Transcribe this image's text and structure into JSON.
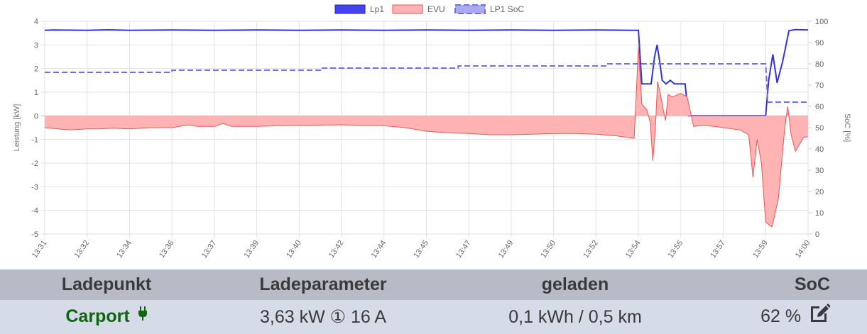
{
  "chart_data": {
    "type": "line",
    "x_labels": [
      "13:31",
      "13:32",
      "13:34",
      "13:36",
      "13:37",
      "13:39",
      "13:40",
      "13:42",
      "13:44",
      "13:45",
      "13:47",
      "13:49",
      "13:50",
      "13:52",
      "13:54",
      "13:55",
      "13:57",
      "13:59",
      "14:00"
    ],
    "y_left": {
      "label": "Leistung [kW]",
      "ticks": [
        4,
        3,
        2,
        1,
        0,
        -1,
        -2,
        -3,
        -4,
        -5
      ],
      "min": -5,
      "max": 4
    },
    "y_right": {
      "label": "SoC [%]",
      "ticks": [
        100,
        90,
        80,
        70,
        60,
        50,
        40,
        30,
        20,
        10,
        0
      ],
      "min": 0,
      "max": 100
    },
    "series": [
      {
        "name": "Lp1",
        "axis": "left",
        "style": "line",
        "color": "#3333dd",
        "points": [
          [
            0,
            3.62
          ],
          [
            0.2,
            3.63
          ],
          [
            1.0,
            3.62
          ],
          [
            1.5,
            3.64
          ],
          [
            2.0,
            3.62
          ],
          [
            3.0,
            3.63
          ],
          [
            4.0,
            3.62
          ],
          [
            5.0,
            3.63
          ],
          [
            6.0,
            3.62
          ],
          [
            7.0,
            3.63
          ],
          [
            8.0,
            3.62
          ],
          [
            9.0,
            3.63
          ],
          [
            10.0,
            3.62
          ],
          [
            11.0,
            3.63
          ],
          [
            12.0,
            3.62
          ],
          [
            13.0,
            3.63
          ],
          [
            13.85,
            3.62
          ],
          [
            14.0,
            3.62
          ],
          [
            14.08,
            1.35
          ],
          [
            14.3,
            1.35
          ],
          [
            14.38,
            2.5
          ],
          [
            14.44,
            3.0
          ],
          [
            14.5,
            2.3
          ],
          [
            14.56,
            1.5
          ],
          [
            14.65,
            1.35
          ],
          [
            14.75,
            1.5
          ],
          [
            14.85,
            1.35
          ],
          [
            15.1,
            1.35
          ],
          [
            15.18,
            0.0
          ],
          [
            16.0,
            0.0
          ],
          [
            16.8,
            0.0
          ],
          [
            17.0,
            0.0
          ],
          [
            17.07,
            1.5
          ],
          [
            17.17,
            2.6
          ],
          [
            17.27,
            1.4
          ],
          [
            17.4,
            2.3
          ],
          [
            17.55,
            3.6
          ],
          [
            17.7,
            3.65
          ],
          [
            18.0,
            3.63
          ]
        ]
      },
      {
        "name": "EVU",
        "axis": "left",
        "style": "area",
        "color": "#ee5555",
        "fill": "#ffb3b3",
        "points": [
          [
            0,
            -0.5
          ],
          [
            0.3,
            -0.55
          ],
          [
            0.6,
            -0.6
          ],
          [
            1.0,
            -0.55
          ],
          [
            1.3,
            -0.55
          ],
          [
            1.6,
            -0.52
          ],
          [
            2.0,
            -0.55
          ],
          [
            2.5,
            -0.5
          ],
          [
            3.0,
            -0.5
          ],
          [
            3.4,
            -0.38
          ],
          [
            3.6,
            -0.45
          ],
          [
            4.0,
            -0.45
          ],
          [
            4.2,
            -0.32
          ],
          [
            4.4,
            -0.45
          ],
          [
            5.0,
            -0.45
          ],
          [
            5.5,
            -0.42
          ],
          [
            6.0,
            -0.4
          ],
          [
            7.0,
            -0.38
          ],
          [
            8.0,
            -0.42
          ],
          [
            8.5,
            -0.5
          ],
          [
            9.0,
            -0.65
          ],
          [
            9.5,
            -0.72
          ],
          [
            10.0,
            -0.75
          ],
          [
            10.5,
            -0.8
          ],
          [
            11.0,
            -0.8
          ],
          [
            11.5,
            -0.78
          ],
          [
            12.0,
            -0.75
          ],
          [
            12.5,
            -0.75
          ],
          [
            13.0,
            -0.78
          ],
          [
            13.5,
            -0.85
          ],
          [
            13.9,
            -0.95
          ],
          [
            14.0,
            2.9
          ],
          [
            14.08,
            0.5
          ],
          [
            14.2,
            0.25
          ],
          [
            14.28,
            -0.3
          ],
          [
            14.34,
            -1.9
          ],
          [
            14.4,
            -0.5
          ],
          [
            14.45,
            1.45
          ],
          [
            14.52,
            0.9
          ],
          [
            14.58,
            0.3
          ],
          [
            14.64,
            -0.2
          ],
          [
            14.7,
            0.9
          ],
          [
            14.8,
            0.8
          ],
          [
            15.0,
            0.95
          ],
          [
            15.15,
            0.8
          ],
          [
            15.3,
            -0.45
          ],
          [
            15.5,
            -0.4
          ],
          [
            15.8,
            -0.45
          ],
          [
            16.0,
            -0.5
          ],
          [
            16.4,
            -0.6
          ],
          [
            16.6,
            -0.8
          ],
          [
            16.7,
            -2.6
          ],
          [
            16.8,
            -1.0
          ],
          [
            16.9,
            -2.0
          ],
          [
            17.0,
            -4.5
          ],
          [
            17.15,
            -4.7
          ],
          [
            17.3,
            -3.5
          ],
          [
            17.45,
            -0.5
          ],
          [
            17.52,
            0.4
          ],
          [
            17.6,
            -0.8
          ],
          [
            17.7,
            -1.5
          ],
          [
            17.8,
            -1.2
          ],
          [
            17.9,
            -0.9
          ],
          [
            18.0,
            -0.9
          ]
        ]
      },
      {
        "name": "LP1 SoC",
        "axis": "right",
        "style": "dashed",
        "color": "#7070ee",
        "points": [
          [
            0,
            76
          ],
          [
            6.0,
            76
          ],
          [
            6.0,
            77
          ],
          [
            13.0,
            77
          ],
          [
            13.0,
            78
          ],
          [
            19.5,
            78
          ],
          [
            19.5,
            79
          ],
          [
            26.5,
            79
          ],
          [
            26.5,
            80
          ],
          [
            33.5,
            80
          ],
          [
            33.5,
            80
          ],
          [
            34.0,
            80
          ],
          [
            34.1,
            62
          ],
          [
            36.0,
            62
          ]
        ]
      }
    ],
    "legend": "top-center",
    "grid": true
  },
  "table": {
    "headers": [
      "Ladepunkt",
      "Ladeparameter",
      "geladen",
      "SoC"
    ],
    "row": {
      "name": "Carport",
      "params": "3,63 kW ① 16 A",
      "charged": "0,1 kWh / 0,5 km",
      "soc": "62 %"
    }
  },
  "icons": {
    "plug": "plug-icon",
    "edit": "edit-icon"
  }
}
